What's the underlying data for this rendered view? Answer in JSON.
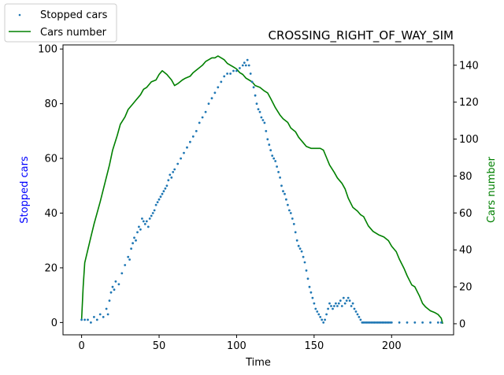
{
  "chart_data": {
    "type": "scatter",
    "title": "CROSSING_RIGHT_OF_WAY_SIM",
    "xlabel": "Time",
    "ylabel_left": "Stopped cars",
    "ylabel_right": "Cars number",
    "xlim": [
      -12,
      240
    ],
    "ylim_left": [
      -4.5,
      101.5
    ],
    "ylim_right": [
      -6,
      151
    ],
    "x_ticks": [
      0,
      50,
      100,
      150,
      200
    ],
    "y_left_ticks": [
      0,
      20,
      40,
      60,
      80,
      100
    ],
    "y_right_ticks": [
      0,
      20,
      40,
      60,
      80,
      100,
      120,
      140
    ],
    "grid": false,
    "legend_placement": "top-left, outside axes",
    "series": [
      {
        "name": "Stopped cars",
        "kind": "scatter",
        "axis": "left",
        "color": "#1f77b4",
        "x": [
          0,
          2,
          4,
          6,
          8,
          10,
          12,
          14,
          16,
          17,
          18,
          19,
          20,
          21,
          22,
          24,
          26,
          28,
          30,
          31,
          32,
          33,
          34,
          35,
          36,
          37,
          38,
          39,
          40,
          41,
          42,
          43,
          44,
          45,
          46,
          47,
          48,
          49,
          50,
          51,
          52,
          53,
          54,
          55,
          56,
          57,
          58,
          59,
          60,
          62,
          64,
          66,
          68,
          70,
          72,
          74,
          76,
          78,
          80,
          82,
          84,
          86,
          88,
          90,
          92,
          94,
          96,
          98,
          100,
          102,
          104,
          105,
          106,
          107,
          108,
          109,
          110,
          111,
          112,
          113,
          114,
          115,
          116,
          117,
          118,
          119,
          120,
          121,
          122,
          123,
          124,
          125,
          126,
          127,
          128,
          129,
          130,
          131,
          132,
          133,
          134,
          135,
          136,
          137,
          138,
          139,
          140,
          141,
          142,
          143,
          144,
          145,
          146,
          147,
          148,
          149,
          150,
          151,
          152,
          153,
          154,
          155,
          156,
          157,
          158,
          159,
          160,
          161,
          162,
          163,
          164,
          165,
          166,
          167,
          168,
          169,
          170,
          171,
          172,
          173,
          174,
          175,
          176,
          177,
          178,
          179,
          180,
          181,
          182,
          183,
          184,
          185,
          186,
          187,
          188,
          189,
          190,
          191,
          192,
          193,
          194,
          195,
          196,
          197,
          198,
          199,
          200,
          205,
          210,
          215,
          220,
          225,
          230,
          232
        ],
        "y": [
          1,
          1,
          1,
          0,
          2,
          1,
          3,
          2,
          5,
          3,
          8,
          11,
          13,
          12,
          15,
          14,
          18,
          21,
          24,
          23,
          27,
          29,
          31,
          30,
          33,
          35,
          34,
          38,
          37,
          36,
          37,
          35,
          38,
          39,
          40,
          41,
          43,
          44,
          45,
          46,
          47,
          48,
          49,
          50,
          52,
          54,
          53,
          55,
          56,
          58,
          60,
          62,
          64,
          66,
          68,
          70,
          73,
          75,
          77,
          80,
          82,
          84,
          86,
          88,
          90,
          91,
          91,
          92,
          92,
          93,
          94,
          95,
          94,
          96,
          94,
          91,
          88,
          86,
          83,
          80,
          78,
          77,
          75,
          74,
          73,
          70,
          67,
          65,
          63,
          61,
          60,
          59,
          57,
          55,
          53,
          50,
          48,
          47,
          45,
          43,
          41,
          40,
          38,
          36,
          33,
          30,
          28,
          27,
          26,
          24,
          22,
          19,
          16,
          13,
          11,
          9,
          7,
          5,
          4,
          3,
          2,
          1,
          0,
          1,
          3,
          5,
          7,
          6,
          5,
          6,
          7,
          6,
          7,
          8,
          6,
          9,
          7,
          8,
          9,
          8,
          6,
          7,
          5,
          4,
          3,
          2,
          1,
          0,
          0,
          0,
          0,
          0,
          0,
          0,
          0,
          0,
          0,
          0,
          0,
          0,
          0,
          0,
          0,
          0,
          0,
          0,
          0,
          0,
          0,
          0,
          0,
          0,
          0,
          0
        ]
      },
      {
        "name": "Cars number",
        "kind": "line",
        "axis": "right",
        "color": "#008000",
        "x": [
          0,
          1,
          2,
          4,
          6,
          8,
          10,
          12,
          15,
          18,
          20,
          23,
          25,
          28,
          30,
          33,
          35,
          38,
          40,
          42,
          45,
          48,
          50,
          52,
          55,
          58,
          60,
          62,
          65,
          67,
          70,
          72,
          75,
          78,
          80,
          82,
          84,
          86,
          88,
          90,
          92,
          94,
          96,
          98,
          100,
          102,
          104,
          106,
          108,
          110,
          112,
          115,
          118,
          120,
          122,
          125,
          128,
          130,
          133,
          135,
          138,
          140,
          143,
          145,
          148,
          150,
          152,
          154,
          156,
          158,
          160,
          163,
          165,
          168,
          170,
          172,
          175,
          178,
          180,
          182,
          185,
          188,
          190,
          192,
          195,
          198,
          200,
          203,
          205,
          208,
          210,
          213,
          215,
          218,
          220,
          222,
          225,
          228,
          230,
          232,
          233
        ],
        "y": [
          2,
          20,
          33,
          40,
          47,
          54,
          60,
          66,
          76,
          86,
          94,
          102,
          108,
          112,
          116,
          119,
          121,
          124,
          127,
          128,
          131,
          132,
          135,
          137,
          135,
          132,
          129,
          130,
          132,
          133,
          134,
          136,
          138,
          140,
          142,
          143,
          144,
          144,
          145,
          144,
          143,
          141,
          140,
          139,
          138,
          136,
          135,
          133,
          132,
          131,
          129,
          128,
          126,
          125,
          122,
          117,
          113,
          111,
          109,
          106,
          104,
          101,
          98,
          96,
          95,
          95,
          95,
          95,
          94,
          90,
          86,
          82,
          79,
          76,
          73,
          68,
          63,
          61,
          59,
          58,
          53,
          50,
          49,
          48,
          47,
          45,
          42,
          39,
          35,
          30,
          26,
          21,
          20,
          15,
          11,
          9,
          7,
          6,
          5,
          3,
          0
        ]
      }
    ]
  }
}
